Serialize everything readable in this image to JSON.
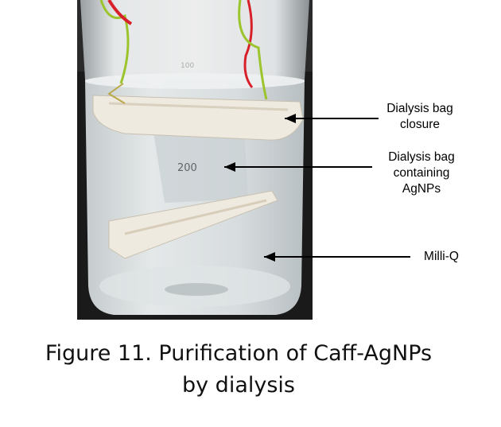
{
  "photo": {
    "scale_mark": "200",
    "rim_mark": "100"
  },
  "labels": {
    "closure_line1": "Dialysis bag",
    "closure_line2": "closure",
    "bag_line1": "Dialysis bag",
    "bag_line2": "containing",
    "bag_line3": "AgNPs",
    "milliq": "Milli-Q"
  },
  "caption": {
    "line1": "Figure 11. Purification of Caff-AgNPs",
    "line2": "by dialysis"
  },
  "colors": {
    "background": "#ffffff",
    "text": "#000000",
    "photo_dark": "#151515",
    "water": "#cfd4d6",
    "bag_white": "#efeae0",
    "tie_red": "#d8202a",
    "tie_green": "#9cc42c"
  }
}
